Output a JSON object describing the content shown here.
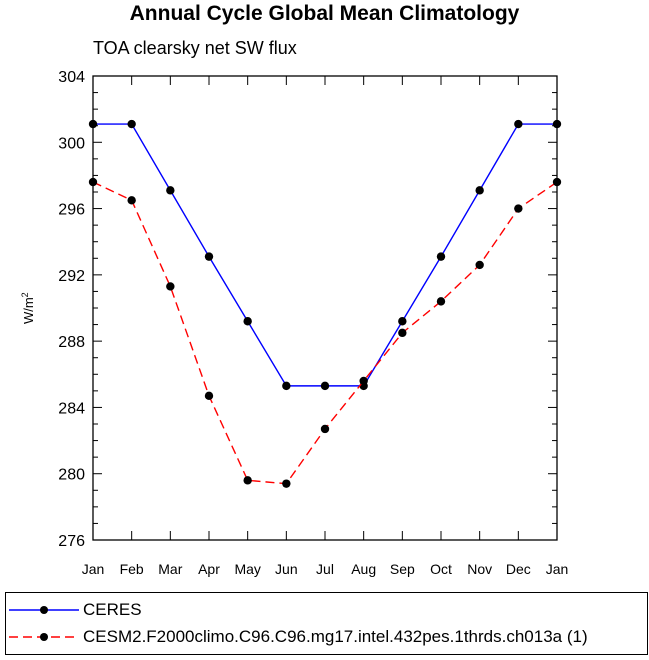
{
  "chart_data": {
    "type": "line",
    "title": "Annual Cycle Global Mean Climatology",
    "subtitle": "TOA clearsky net SW flux",
    "ylabel": "W/m",
    "ylabel_sup": "2",
    "xlabel": "",
    "categories": [
      "Jan",
      "Feb",
      "Mar",
      "Apr",
      "May",
      "Jun",
      "Jul",
      "Aug",
      "Sep",
      "Oct",
      "Nov",
      "Dec",
      "Jan"
    ],
    "ylim": [
      276,
      304
    ],
    "yticks": [
      276,
      280,
      284,
      288,
      292,
      296,
      300,
      304
    ],
    "series": [
      {
        "name": "CERES",
        "color": "#0000ff",
        "dash": "solid",
        "values": [
          301.1,
          301.1,
          297.1,
          293.1,
          289.2,
          285.3,
          285.3,
          285.3,
          289.2,
          293.1,
          297.1,
          301.1,
          301.1
        ]
      },
      {
        "name": "CESM2.F2000climo.C96.C96.mg17.intel.432pes.1thrds.ch013a (1)",
        "color": "#ff0000",
        "dash": "dashed",
        "values": [
          297.6,
          296.5,
          291.3,
          284.7,
          279.6,
          279.4,
          282.7,
          285.6,
          288.5,
          290.4,
          292.6,
          296.0,
          297.6
        ]
      }
    ],
    "legend_position": "bottom"
  }
}
